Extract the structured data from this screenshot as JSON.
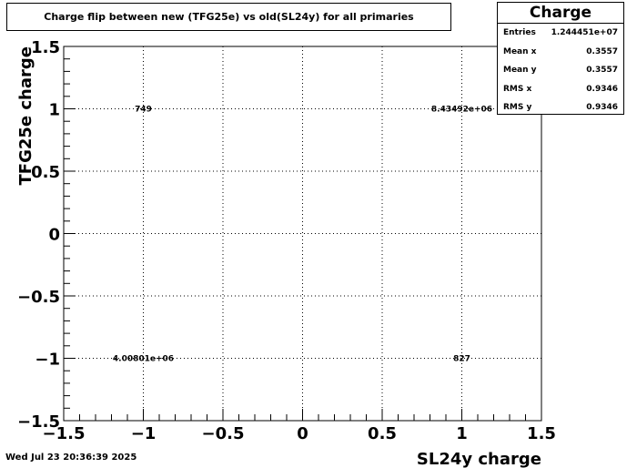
{
  "title": "Charge flip between new (TFG25e) vs old(SL24y) for all primaries",
  "stats": {
    "name": "Charge",
    "rows": [
      {
        "label": "Entries",
        "value": "1.244451e+07"
      },
      {
        "label": "Mean x",
        "value": "0.3557"
      },
      {
        "label": "Mean y",
        "value": "0.3557"
      },
      {
        "label": "RMS x",
        "value": "0.9346"
      },
      {
        "label": "RMS y",
        "value": "0.9346"
      }
    ]
  },
  "footer": {
    "date": "Wed Jul 23 20:36:39 2025"
  },
  "chart_data": {
    "type": "heatmap",
    "xlabel": "SL24y charge",
    "ylabel": "TFG25e charge",
    "xlim": [
      -1.5,
      1.5
    ],
    "ylim": [
      -1.5,
      1.5
    ],
    "x_ticks": [
      "−1.5",
      "−1",
      "−0.5",
      "0",
      "0.5",
      "1",
      "1.5"
    ],
    "y_ticks": [
      "−1.5",
      "−1",
      "−0.5",
      "0",
      "0.5",
      "1",
      "1.5"
    ],
    "grid": true,
    "cells": [
      {
        "x": -1,
        "y": 1,
        "label": "749"
      },
      {
        "x": 1,
        "y": 1,
        "label": "8.43492e+06"
      },
      {
        "x": -1,
        "y": -1,
        "label": "4.00801e+06"
      },
      {
        "x": 1,
        "y": -1,
        "label": "827"
      }
    ]
  }
}
